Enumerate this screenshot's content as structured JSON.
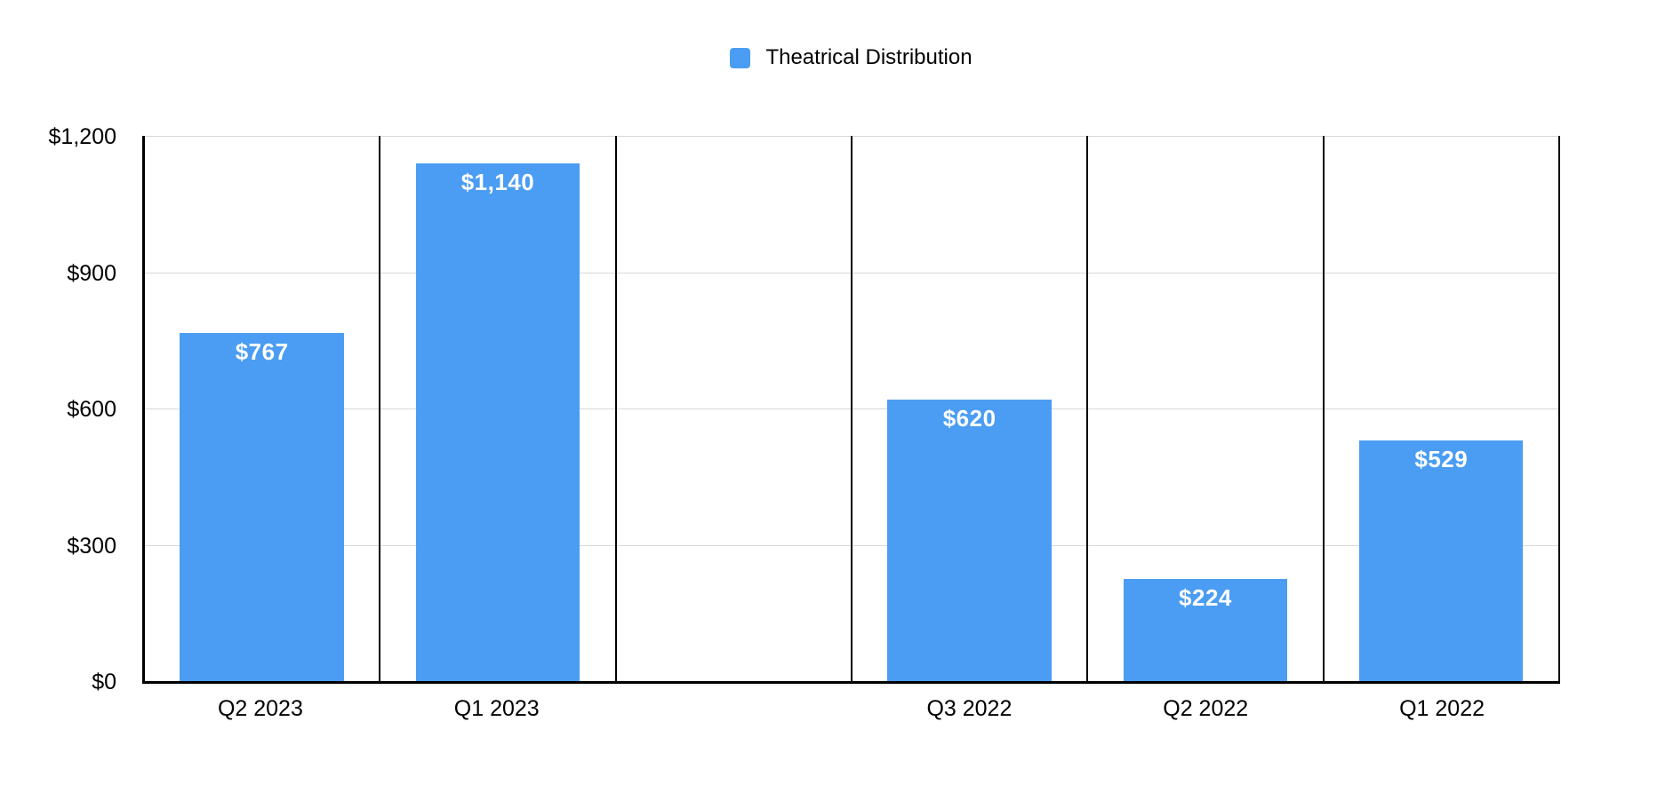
{
  "chart_data": {
    "type": "bar",
    "title": "",
    "legend": {
      "label": "Theatrical Distribution",
      "position": "top-center"
    },
    "categories": [
      "Q2 2023",
      "Q1 2023",
      "",
      "Q3 2022",
      "Q2 2022",
      "Q1 2022"
    ],
    "values": [
      767,
      1140,
      null,
      620,
      224,
      529
    ],
    "value_labels": [
      "$767",
      "$1,140",
      "",
      "$620",
      "$224",
      "$529"
    ],
    "ylim": [
      0,
      1200
    ],
    "yticks": {
      "values": [
        1200,
        900,
        600,
        300,
        0
      ],
      "labels": [
        "$1,200",
        "$900",
        "$600",
        "$300",
        "$0"
      ]
    },
    "grid": "horizontal gray gridlines at each y tick; black vertical separators between category panels",
    "colors": {
      "bar": "#4A9DF2",
      "value_label": "#FFFFFF",
      "axis": "#000000",
      "separator": "#000000",
      "gridline": "#D8D8D8",
      "text": "#000000",
      "background": "#FFFFFF"
    }
  }
}
